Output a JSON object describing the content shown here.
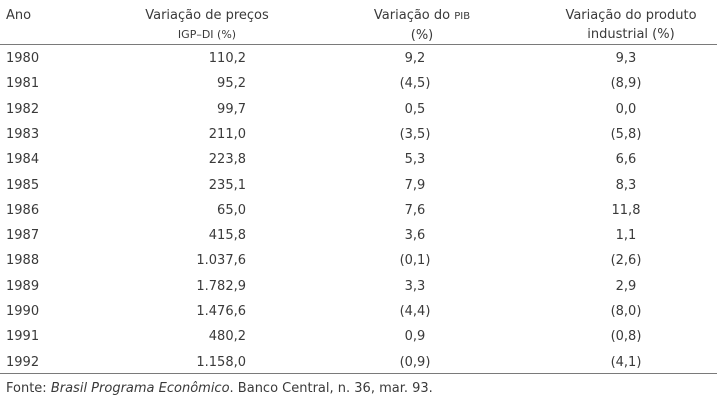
{
  "table": {
    "headers": {
      "ano": "Ano",
      "ipc_line1": "Variação de preços",
      "ipc_line2": "IGP–DI (%)",
      "pib_line1_a": "Variação do ",
      "pib_line1_b": "PIB",
      "pib_line2": "(%)",
      "ind_line1": "Variação do produto",
      "ind_line2": "industrial (%)"
    },
    "rows": [
      {
        "ano": "1980",
        "ipc": "110,2",
        "pib": "9,2",
        "ind": "9,3"
      },
      {
        "ano": "1981",
        "ipc": "95,2",
        "pib": "(4,5)",
        "ind": "(8,9)"
      },
      {
        "ano": "1982",
        "ipc": "99,7",
        "pib": "0,5",
        "ind": "0,0"
      },
      {
        "ano": "1983",
        "ipc": "211,0",
        "pib": "(3,5)",
        "ind": "(5,8)"
      },
      {
        "ano": "1984",
        "ipc": "223,8",
        "pib": "5,3",
        "ind": "6,6"
      },
      {
        "ano": "1985",
        "ipc": "235,1",
        "pib": "7,9",
        "ind": "8,3"
      },
      {
        "ano": "1986",
        "ipc": "65,0",
        "pib": "7,6",
        "ind": "11,8"
      },
      {
        "ano": "1987",
        "ipc": "415,8",
        "pib": "3,6",
        "ind": "1,1"
      },
      {
        "ano": "1988",
        "ipc": "1.037,6",
        "pib": "(0,1)",
        "ind": "(2,6)"
      },
      {
        "ano": "1989",
        "ipc": "1.782,9",
        "pib": "3,3",
        "ind": "2,9"
      },
      {
        "ano": "1990",
        "ipc": "1.476,6",
        "pib": "(4,4)",
        "ind": "(8,0)"
      },
      {
        "ano": "1991",
        "ipc": "480,2",
        "pib": "0,9",
        "ind": "(0,8)"
      },
      {
        "ano": "1992",
        "ipc": "1.158,0",
        "pib": "(0,9)",
        "ind": "(4,1)"
      }
    ]
  },
  "source": {
    "prefix": "Fonte: ",
    "title": "Brasil Programa Econômico",
    "suffix": ". Banco Central, n. 36, mar. 93."
  }
}
